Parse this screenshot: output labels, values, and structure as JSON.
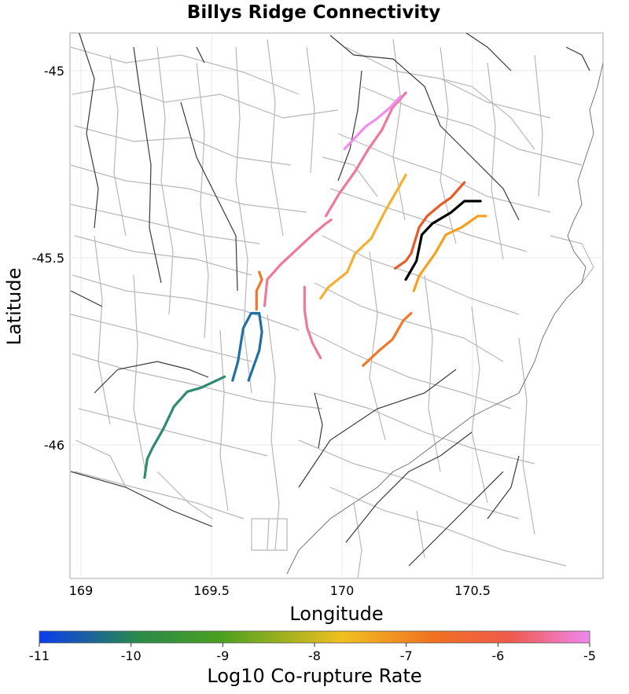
{
  "title": "Billys Ridge Connectivity",
  "x_axis": {
    "label": "Longitude",
    "ticks": [
      "169",
      "169.5",
      "170",
      "170.5"
    ]
  },
  "y_axis": {
    "label": "Latitude",
    "ticks": [
      "-45",
      "-45.5",
      "-46"
    ]
  },
  "colorbar": {
    "label": "Log10 Co-rupture Rate",
    "ticks": [
      "-11",
      "-10",
      "-9",
      "-8",
      "-7",
      "-6",
      "-5"
    ],
    "stops": [
      "#0a3cf0",
      "#2a8a4a",
      "#4aa020",
      "#f0c020",
      "#f07020",
      "#f06060",
      "#f088f0"
    ]
  },
  "colors": {
    "target": "#000000",
    "pink_light": "#f48cf0",
    "pink": "#f0789c",
    "orange_light": "#f5b030",
    "orange": "#f07828",
    "red_orange": "#e85a28",
    "blue": "#2070a8",
    "green": "#2e8a70"
  },
  "chart_data": {
    "type": "map",
    "title": "Billys Ridge Connectivity",
    "xlabel": "Longitude",
    "ylabel": "Latitude",
    "xlim": [
      168.97,
      170.97
    ],
    "ylim": [
      -46.35,
      -44.89
    ],
    "colorbar_range": [
      -11,
      -5
    ],
    "target_fault": "Billys Ridge",
    "ruptures": [
      {
        "id": "target",
        "log10_rate": null,
        "color": "#000000",
        "coords": [
          [
            170.23,
            -45.55
          ],
          [
            170.27,
            -45.5
          ],
          [
            170.29,
            -45.43
          ],
          [
            170.33,
            -45.4
          ],
          [
            170.4,
            -45.37
          ],
          [
            170.45,
            -45.34
          ],
          [
            170.51,
            -45.34
          ]
        ]
      },
      {
        "id": "r1",
        "log10_rate": -7.3,
        "color": "#f5a020",
        "coords": [
          [
            170.26,
            -45.58
          ],
          [
            170.28,
            -45.54
          ],
          [
            170.34,
            -45.48
          ],
          [
            170.38,
            -45.43
          ],
          [
            170.44,
            -45.41
          ],
          [
            170.5,
            -45.38
          ],
          [
            170.53,
            -45.38
          ]
        ]
      },
      {
        "id": "r2",
        "log10_rate": -6.6,
        "color": "#e85a28",
        "coords": [
          [
            170.19,
            -45.52
          ],
          [
            170.23,
            -45.5
          ],
          [
            170.25,
            -45.48
          ],
          [
            170.28,
            -45.41
          ],
          [
            170.31,
            -45.38
          ],
          [
            170.36,
            -45.35
          ],
          [
            170.4,
            -45.33
          ],
          [
            170.45,
            -45.29
          ]
        ]
      },
      {
        "id": "r3",
        "log10_rate": -7.6,
        "color": "#f5b030",
        "coords": [
          [
            169.91,
            -45.6
          ],
          [
            169.94,
            -45.57
          ],
          [
            170.01,
            -45.53
          ],
          [
            170.04,
            -45.48
          ],
          [
            170.1,
            -45.44
          ],
          [
            170.15,
            -45.37
          ],
          [
            170.19,
            -45.32
          ],
          [
            170.23,
            -45.27
          ]
        ]
      },
      {
        "id": "r4",
        "log10_rate": -5.5,
        "color": "#f0789c",
        "coords": [
          [
            169.93,
            -45.38
          ],
          [
            169.98,
            -45.32
          ],
          [
            170.04,
            -45.26
          ],
          [
            170.09,
            -45.2
          ],
          [
            170.14,
            -45.15
          ],
          [
            170.18,
            -45.09
          ],
          [
            170.23,
            -45.05
          ]
        ]
      },
      {
        "id": "r5",
        "log10_rate": -5.1,
        "color": "#f48cf0",
        "coords": [
          [
            170.0,
            -45.2
          ],
          [
            170.04,
            -45.17
          ],
          [
            170.08,
            -45.14
          ],
          [
            170.12,
            -45.12
          ],
          [
            170.17,
            -45.09
          ],
          [
            170.21,
            -45.06
          ]
        ]
      },
      {
        "id": "r6",
        "log10_rate": -5.6,
        "color": "#f07898",
        "coords": [
          [
            169.85,
            -45.57
          ],
          [
            169.85,
            -45.63
          ],
          [
            169.86,
            -45.68
          ],
          [
            169.88,
            -45.72
          ],
          [
            169.91,
            -45.76
          ]
        ]
      },
      {
        "id": "r7",
        "log10_rate": -5.6,
        "color": "#f07898",
        "coords": [
          [
            169.7,
            -45.62
          ],
          [
            169.71,
            -45.55
          ],
          [
            169.76,
            -45.51
          ],
          [
            169.82,
            -45.47
          ],
          [
            169.88,
            -45.43
          ],
          [
            169.93,
            -45.4
          ],
          [
            169.95,
            -45.39
          ]
        ]
      },
      {
        "id": "r8",
        "log10_rate": -7.1,
        "color": "#f07828",
        "coords": [
          [
            170.07,
            -45.78
          ],
          [
            170.13,
            -45.74
          ],
          [
            170.18,
            -45.71
          ],
          [
            170.22,
            -45.66
          ],
          [
            170.25,
            -45.64
          ]
        ]
      },
      {
        "id": "r9",
        "log10_rate": -7.2,
        "color": "#f07828",
        "coords": [
          [
            169.67,
            -45.63
          ],
          [
            169.67,
            -45.58
          ],
          [
            169.69,
            -45.55
          ],
          [
            169.68,
            -45.53
          ]
        ]
      },
      {
        "id": "r10",
        "log10_rate": -10.0,
        "color": "#2070a8",
        "coords": [
          [
            169.58,
            -45.82
          ],
          [
            169.6,
            -45.77
          ],
          [
            169.62,
            -45.68
          ],
          [
            169.65,
            -45.64
          ],
          [
            169.68,
            -45.64
          ],
          [
            169.69,
            -45.69
          ],
          [
            169.68,
            -45.74
          ],
          [
            169.64,
            -45.82
          ]
        ]
      },
      {
        "id": "r11",
        "log10_rate": -9.8,
        "color": "#2e8a70",
        "coords": [
          [
            169.55,
            -45.81
          ],
          [
            169.46,
            -45.84
          ],
          [
            169.41,
            -45.85
          ],
          [
            169.36,
            -45.89
          ],
          [
            169.32,
            -45.95
          ],
          [
            169.28,
            -46.0
          ],
          [
            169.26,
            -46.03
          ],
          [
            169.25,
            -46.08
          ]
        ]
      }
    ]
  }
}
